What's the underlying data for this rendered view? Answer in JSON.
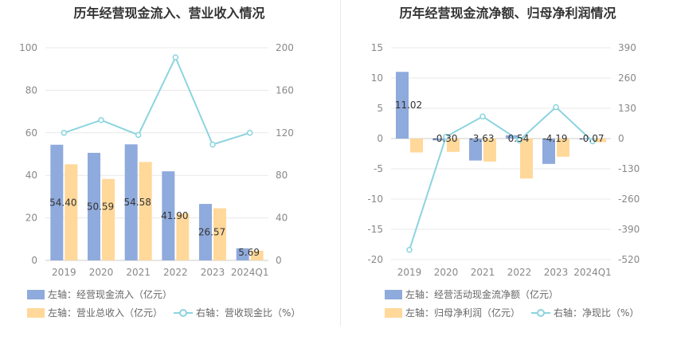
{
  "charts": [
    {
      "title": "历年经营现金流入、营业收入情况",
      "colors": {
        "bar1": "#8faadc",
        "bar2": "#ffd89a",
        "line": "#8cd4df"
      },
      "legend": {
        "bar1": "左轴：经营现金流入（亿元）",
        "bar2": "左轴：营业总收入（亿元）",
        "line": "右轴：营收现金比（%）"
      }
    },
    {
      "title": "历年经营现金流净额、归母净利润情况",
      "colors": {
        "bar1": "#8faadc",
        "bar2": "#ffd89a",
        "line": "#8cd4df"
      },
      "legend": {
        "bar1": "左轴：经营活动现金流净额（亿元）",
        "bar2": "左轴：归母净利润（亿元）",
        "line": "右轴：净现比（%）"
      }
    }
  ],
  "chart_data": [
    {
      "type": "bar",
      "categories": [
        "2019",
        "2020",
        "2021",
        "2022",
        "2023",
        "2024Q1"
      ],
      "series": [
        {
          "name": "左轴：经营现金流入（亿元）",
          "axis": "left",
          "type": "bar",
          "values": [
            54.4,
            50.59,
            54.58,
            41.9,
            26.57,
            5.69
          ],
          "labels": [
            "54.40",
            "50.59",
            "54.58",
            "41.90",
            "26.57",
            "5.69"
          ]
        },
        {
          "name": "左轴：营业总收入（亿元）",
          "axis": "left",
          "type": "bar",
          "values": [
            45.2,
            38.3,
            46.3,
            22.0,
            24.5,
            4.6
          ]
        },
        {
          "name": "右轴：营收现金比（%）",
          "axis": "right",
          "type": "line",
          "values": [
            120,
            132,
            118,
            191,
            109,
            120
          ]
        }
      ],
      "yleft": {
        "min": 0,
        "max": 100,
        "ticks": [
          "0",
          "20",
          "40",
          "60",
          "80",
          "100"
        ]
      },
      "yright": {
        "min": 0,
        "max": 200,
        "ticks": [
          "0",
          "40",
          "80",
          "120",
          "160",
          "200"
        ]
      },
      "grid": true,
      "legend_position": "bottom-left"
    },
    {
      "type": "bar",
      "categories": [
        "2019",
        "2020",
        "2021",
        "2022",
        "2023",
        "2024Q1"
      ],
      "series": [
        {
          "name": "左轴：经营活动现金流净额（亿元）",
          "axis": "left",
          "type": "bar",
          "values": [
            11.02,
            -0.3,
            -3.63,
            0.54,
            -4.19,
            -0.07
          ],
          "labels": [
            "11.02",
            "-0.30",
            "-3.63",
            "0.54",
            "-4.19",
            "-0.07"
          ]
        },
        {
          "name": "左轴：归母净利润（亿元）",
          "axis": "left",
          "type": "bar",
          "values": [
            -2.3,
            -2.2,
            -3.8,
            -6.6,
            -3.0,
            -0.6
          ]
        },
        {
          "name": "右轴：净现比（%）",
          "axis": "right",
          "type": "line",
          "values": [
            -478,
            8,
            95,
            -8,
            135,
            -12
          ]
        }
      ],
      "yleft": {
        "min": -20,
        "max": 15,
        "ticks": [
          "-20",
          "-15",
          "-10",
          "-5",
          "0",
          "5",
          "10",
          "15"
        ]
      },
      "yright": {
        "min": -520,
        "max": 390,
        "ticks": [
          "-520",
          "-390",
          "-260",
          "-130",
          "0",
          "130",
          "260",
          "390"
        ]
      },
      "grid": true,
      "legend_position": "bottom-left"
    }
  ]
}
